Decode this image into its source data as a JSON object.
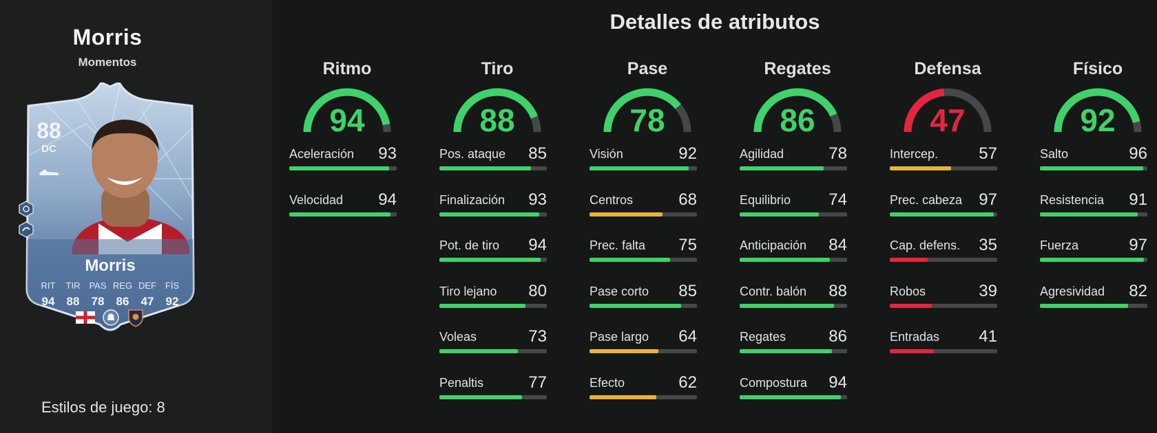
{
  "player": {
    "name": "Morris",
    "card_type": "Momentos",
    "card_name": "Morris",
    "rating": "88",
    "position": "DC",
    "stat_labels": [
      "RIT",
      "TIR",
      "PAS",
      "REG",
      "DEF",
      "FÍS"
    ],
    "stat_values": [
      "94",
      "88",
      "78",
      "86",
      "47",
      "92"
    ],
    "icons": [
      "playstyle-plus-icon",
      "playstyle-icon",
      "england-flag-icon",
      "premier-league-icon",
      "luton-crest-icon",
      "boot-icon"
    ]
  },
  "playstyles_label": "Estilos de juego: 8",
  "section_title": "Detalles de atributos",
  "colors": {
    "high": "#3fd26a",
    "medium": "#e8b23a",
    "low": "#e5253f",
    "track": "#464848"
  },
  "categories": [
    {
      "name": "Ritmo",
      "value": "94",
      "rating": 94,
      "attributes": [
        {
          "label": "Aceleración",
          "value": "93",
          "rating": 93
        },
        {
          "label": "Velocidad",
          "value": "94",
          "rating": 94
        }
      ]
    },
    {
      "name": "Tiro",
      "value": "88",
      "rating": 88,
      "attributes": [
        {
          "label": "Pos. ataque",
          "value": "85",
          "rating": 85
        },
        {
          "label": "Finalización",
          "value": "93",
          "rating": 93
        },
        {
          "label": "Pot. de tiro",
          "value": "94",
          "rating": 94
        },
        {
          "label": "Tiro lejano",
          "value": "80",
          "rating": 80
        },
        {
          "label": "Voleas",
          "value": "73",
          "rating": 73
        },
        {
          "label": "Penaltis",
          "value": "77",
          "rating": 77
        }
      ]
    },
    {
      "name": "Pase",
      "value": "78",
      "rating": 78,
      "attributes": [
        {
          "label": "Visión",
          "value": "92",
          "rating": 92
        },
        {
          "label": "Centros",
          "value": "68",
          "rating": 68
        },
        {
          "label": "Prec. falta",
          "value": "75",
          "rating": 75
        },
        {
          "label": "Pase corto",
          "value": "85",
          "rating": 85
        },
        {
          "label": "Pase largo",
          "value": "64",
          "rating": 64
        },
        {
          "label": "Efecto",
          "value": "62",
          "rating": 62
        }
      ]
    },
    {
      "name": "Regates",
      "value": "86",
      "rating": 86,
      "attributes": [
        {
          "label": "Agilidad",
          "value": "78",
          "rating": 78
        },
        {
          "label": "Equilibrio",
          "value": "74",
          "rating": 74
        },
        {
          "label": "Anticipación",
          "value": "84",
          "rating": 84
        },
        {
          "label": "Contr. balón",
          "value": "88",
          "rating": 88
        },
        {
          "label": "Regates",
          "value": "86",
          "rating": 86
        },
        {
          "label": "Compostura",
          "value": "94",
          "rating": 94
        }
      ]
    },
    {
      "name": "Defensa",
      "value": "47",
      "rating": 47,
      "attributes": [
        {
          "label": "Intercep.",
          "value": "57",
          "rating": 57
        },
        {
          "label": "Prec. cabeza",
          "value": "97",
          "rating": 97
        },
        {
          "label": "Cap. defens.",
          "value": "35",
          "rating": 35
        },
        {
          "label": "Robos",
          "value": "39",
          "rating": 39
        },
        {
          "label": "Entradas",
          "value": "41",
          "rating": 41
        }
      ]
    },
    {
      "name": "Físico",
      "value": "92",
      "rating": 92,
      "attributes": [
        {
          "label": "Salto",
          "value": "96",
          "rating": 96
        },
        {
          "label": "Resistencia",
          "value": "91",
          "rating": 91
        },
        {
          "label": "Fuerza",
          "value": "97",
          "rating": 97
        },
        {
          "label": "Agresividad",
          "value": "82",
          "rating": 82
        }
      ]
    }
  ]
}
